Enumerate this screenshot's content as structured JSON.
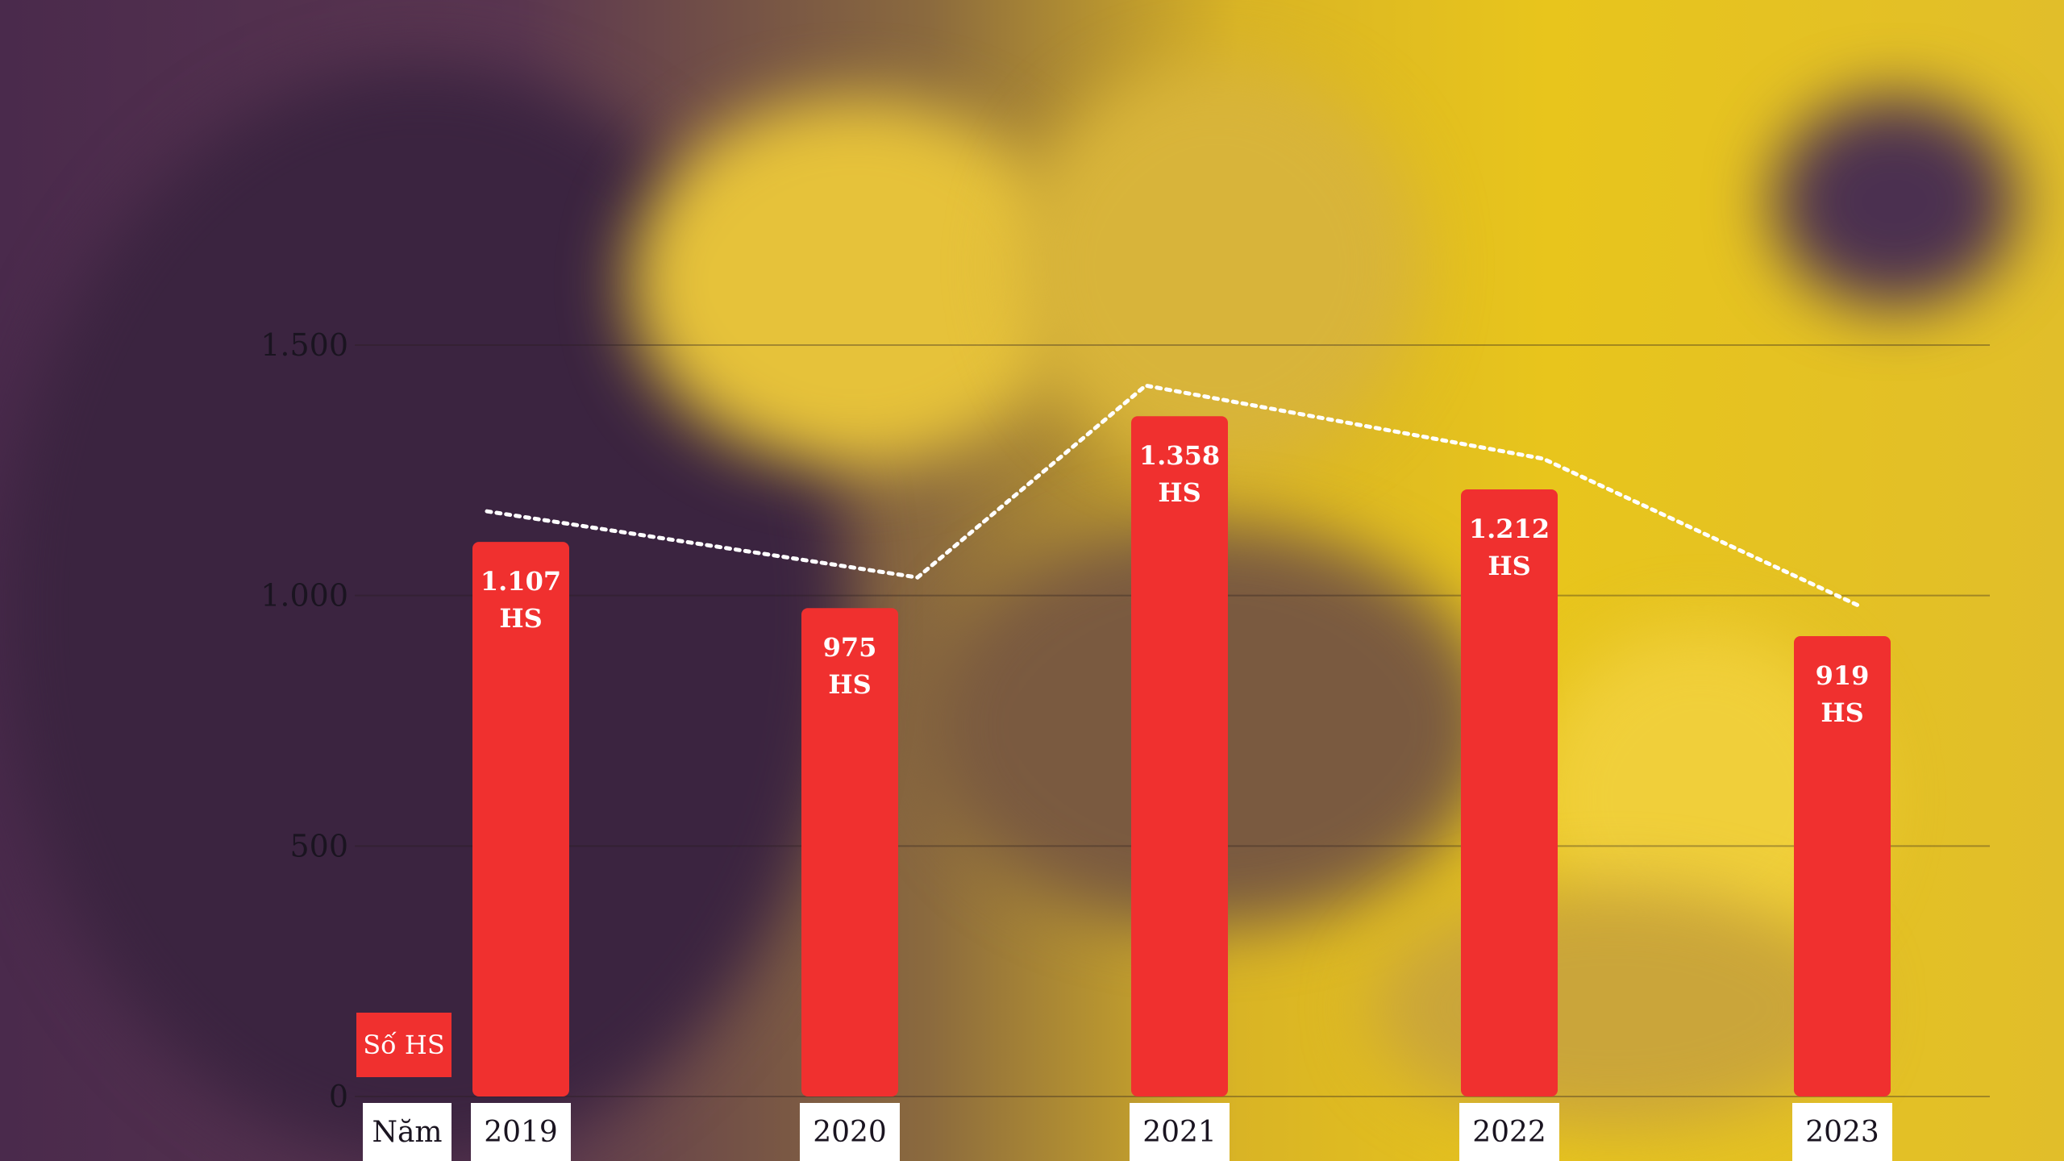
{
  "chart_data": {
    "type": "bar",
    "categories": [
      "2019",
      "2020",
      "2021",
      "2022",
      "2023"
    ],
    "series": [
      {
        "name": "Số HS",
        "values": [
          1107,
          975,
          1358,
          1212,
          919
        ]
      }
    ],
    "bar_labels": [
      [
        "1.107",
        "HS"
      ],
      [
        "975",
        "HS"
      ],
      [
        "1.358",
        "HS"
      ],
      [
        "1.212",
        "HS"
      ],
      [
        "919",
        "HS"
      ]
    ],
    "xlabel": "Năm",
    "ylim": [
      0,
      1500
    ],
    "yticks": [
      0,
      500,
      1000,
      1500
    ],
    "ytick_labels": [
      "0",
      "500",
      "1.000",
      "1.500"
    ],
    "grid": true,
    "trend_line": "dotted",
    "bar_color": "#f0302f",
    "trend_color": "#ffffff"
  }
}
